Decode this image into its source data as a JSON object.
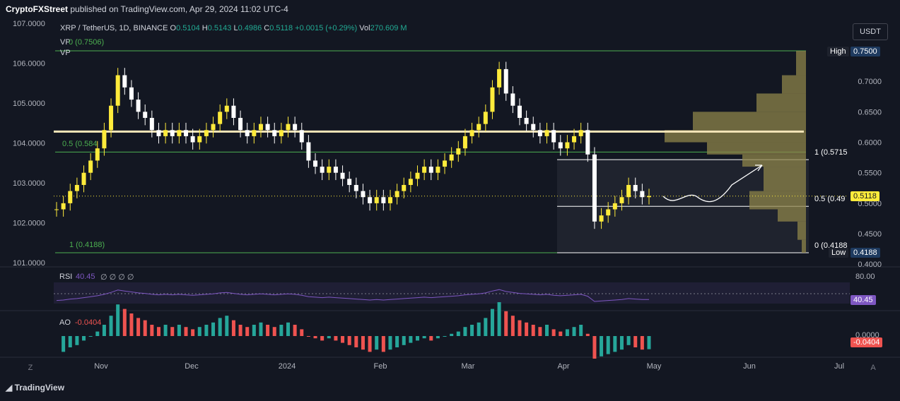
{
  "header": {
    "publisher": "CryptoFXStreet",
    "text": "published on TradingView.com, Apr 29, 2024 11:02 UTC-4"
  },
  "symbol_line": {
    "name": "XRP / TetherUS, 1D, BINANCE",
    "o_label": "O",
    "o": "0.5104",
    "h_label": "H",
    "h": "0.5143",
    "l_label": "L",
    "l": "0.4986",
    "c_label": "C",
    "c": "0.5118",
    "change": "+0.0015 (+0.29%)",
    "vol_label": "Vol",
    "vol": "270.609 M"
  },
  "vp_labels": {
    "vp1": "VP",
    "vp2": "VP",
    "fib_top": "0 (0.7506)",
    "fib_half": "0.5 (0.584",
    "fib_one": "1 (0.4188)"
  },
  "currency_button": "USDT",
  "right_tags": {
    "high_label": "High",
    "high_value": "0.7500",
    "low_label": "Low",
    "low_value": "0.4188",
    "last_price": "0.5118",
    "fib1": "1 (0.5715",
    "fib05": "0.5 (0.49",
    "fib0": "0 (0.4188"
  },
  "left_axis": {
    "ticks": [
      "107.0000",
      "106.0000",
      "105.0000",
      "104.0000",
      "103.0000",
      "102.0000",
      "101.0000"
    ]
  },
  "right_axis": {
    "ticks": [
      "0.7000",
      "0.6500",
      "0.6000",
      "0.5500",
      "0.5000",
      "0.4500",
      "0.4000"
    ]
  },
  "x_axis": {
    "ticks": [
      "Nov",
      "Dec",
      "2024",
      "Feb",
      "Mar",
      "Apr",
      "May",
      "Jun",
      "Jul"
    ]
  },
  "rsi": {
    "label": "RSI",
    "value": "40.45",
    "extra": "∅ ∅ ∅ ∅",
    "top_tick": "80.00",
    "tag": "40.45"
  },
  "ao": {
    "label": "AO",
    "value": "-0.0404",
    "zero_tick": "0.0000",
    "tag": "-0.0404"
  },
  "footer": {
    "brand": "TradingView"
  },
  "colors": {
    "bg": "#131722",
    "up": "#ffeb3b",
    "down": "#ffffff",
    "green": "#4caf50",
    "ao_green": "#26a69a",
    "ao_red": "#ef5350",
    "rsi": "#7e57c2",
    "vp": "#8d8449"
  },
  "chart_data": {
    "type": "candlestick",
    "title": "XRP / TetherUS, 1D, BINANCE",
    "y_axis_ticks": [
      0.7,
      0.65,
      0.6,
      0.55,
      0.5,
      0.45,
      0.4
    ],
    "x_axis_ticks": [
      "Nov",
      "Dec",
      "2024",
      "Feb",
      "Mar",
      "Apr",
      "May",
      "Jun",
      "Jul"
    ],
    "high": 0.75,
    "low": 0.4188,
    "last": 0.5118,
    "key_levels": {
      "resistance": 0.6175,
      "fib_0.5": 0.584,
      "fib_1": 0.5715,
      "fib_0.5_right": 0.495
    },
    "close_series": [
      0.49,
      0.5,
      0.52,
      0.53,
      0.55,
      0.57,
      0.59,
      0.62,
      0.66,
      0.71,
      0.69,
      0.67,
      0.65,
      0.64,
      0.62,
      0.61,
      0.62,
      0.61,
      0.62,
      0.61,
      0.6,
      0.61,
      0.62,
      0.63,
      0.65,
      0.66,
      0.64,
      0.62,
      0.61,
      0.62,
      0.63,
      0.62,
      0.61,
      0.62,
      0.63,
      0.62,
      0.6,
      0.57,
      0.56,
      0.55,
      0.56,
      0.55,
      0.54,
      0.53,
      0.52,
      0.51,
      0.5,
      0.51,
      0.5,
      0.51,
      0.52,
      0.53,
      0.54,
      0.55,
      0.56,
      0.55,
      0.56,
      0.57,
      0.58,
      0.59,
      0.61,
      0.62,
      0.63,
      0.65,
      0.69,
      0.72,
      0.68,
      0.66,
      0.64,
      0.63,
      0.62,
      0.61,
      0.62,
      0.6,
      0.59,
      0.6,
      0.61,
      0.62,
      0.58,
      0.47,
      0.48,
      0.49,
      0.5,
      0.51,
      0.53,
      0.52,
      0.51,
      0.5118
    ]
  }
}
